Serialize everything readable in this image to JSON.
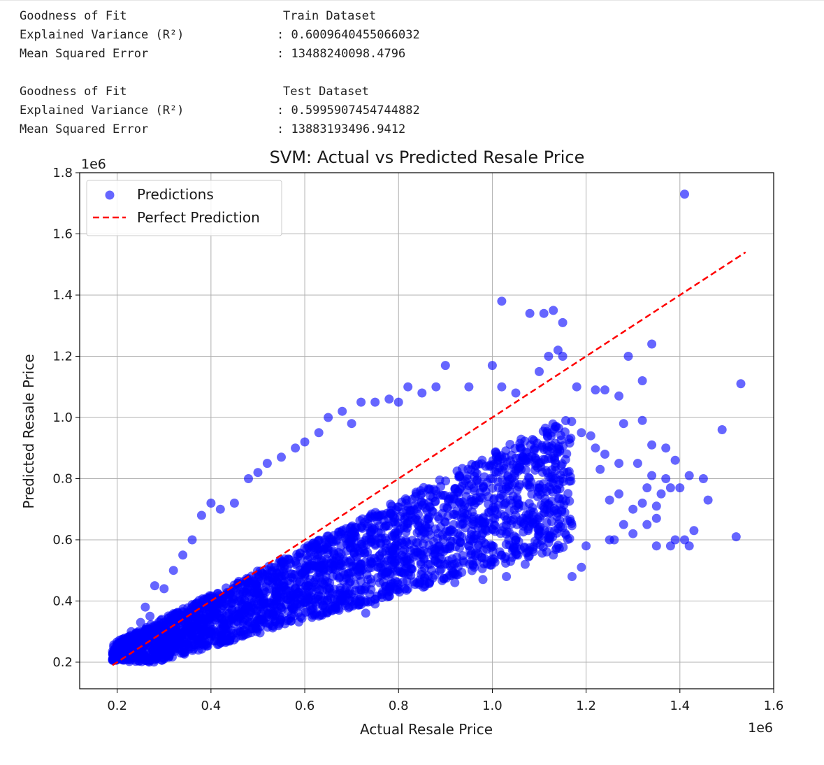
{
  "stats": {
    "train": {
      "header_label": "Goodness of Fit",
      "dataset": "Train Dataset",
      "r2_label": "Explained Variance (R²)",
      "r2_value": ": 0.6009640455066032",
      "mse_label": "Mean Squared Error",
      "mse_value": ": 13488240098.4796"
    },
    "test": {
      "header_label": "Goodness of Fit",
      "dataset": "Test Dataset",
      "r2_label": "Explained Variance (R²)",
      "r2_value": ": 0.5995907454744882",
      "mse_label": "Mean Squared Error",
      "mse_value": ": 13883193496.9412"
    }
  },
  "chart_data": {
    "type": "scatter",
    "title": "SVM: Actual vs Predicted Resale Price",
    "xlabel": "Actual Resale Price",
    "ylabel": "Predicted Resale Price",
    "x_offset_text": "1e6",
    "y_offset_text": "1e6",
    "xlim": [
      0.12,
      1.6
    ],
    "ylim": [
      0.113,
      1.8
    ],
    "x_ticks": [
      0.2,
      0.4,
      0.6,
      0.8,
      1.0,
      1.2,
      1.4,
      1.6
    ],
    "x_tick_labels": [
      "0.2",
      "0.4",
      "0.6",
      "0.8",
      "1.0",
      "1.2",
      "1.4",
      "1.6"
    ],
    "y_ticks": [
      0.2,
      0.4,
      0.6,
      0.8,
      1.0,
      1.2,
      1.4,
      1.6,
      1.8
    ],
    "y_tick_labels": [
      "0.2",
      "0.4",
      "0.6",
      "0.8",
      "1.0",
      "1.2",
      "1.4",
      "1.6",
      "1.8"
    ],
    "grid": true,
    "legend_position": "top-left",
    "legend": [
      "Predictions",
      "Perfect Prediction"
    ],
    "series": [
      {
        "name": "Predictions",
        "kind": "scatter",
        "color": "#0000ff",
        "alpha": 0.6,
        "note": "dense cloud of points roughly between actual 0.19-1.15 and predicted 0.2-1.0; outliers listed",
        "points": [
          [
            0.19,
            0.235
          ],
          [
            0.2,
            0.21
          ],
          [
            0.21,
            0.24
          ],
          [
            0.22,
            0.26
          ],
          [
            0.23,
            0.3
          ],
          [
            0.24,
            0.28
          ],
          [
            0.25,
            0.33
          ],
          [
            0.26,
            0.38
          ],
          [
            0.27,
            0.35
          ],
          [
            0.28,
            0.45
          ],
          [
            0.3,
            0.44
          ],
          [
            0.32,
            0.5
          ],
          [
            0.34,
            0.55
          ],
          [
            0.36,
            0.6
          ],
          [
            0.38,
            0.68
          ],
          [
            0.4,
            0.72
          ],
          [
            0.42,
            0.7
          ],
          [
            0.45,
            0.72
          ],
          [
            0.48,
            0.8
          ],
          [
            0.5,
            0.82
          ],
          [
            0.52,
            0.85
          ],
          [
            0.55,
            0.87
          ],
          [
            0.58,
            0.9
          ],
          [
            0.6,
            0.92
          ],
          [
            0.63,
            0.95
          ],
          [
            0.65,
            1.0
          ],
          [
            0.68,
            1.02
          ],
          [
            0.7,
            0.98
          ],
          [
            0.72,
            1.05
          ],
          [
            0.75,
            1.05
          ],
          [
            0.78,
            1.06
          ],
          [
            0.8,
            1.05
          ],
          [
            0.82,
            1.1
          ],
          [
            0.85,
            1.08
          ],
          [
            0.88,
            1.1
          ],
          [
            0.9,
            1.17
          ],
          [
            0.95,
            1.1
          ],
          [
            1.0,
            1.17
          ],
          [
            1.02,
            1.1
          ],
          [
            1.05,
            1.08
          ],
          [
            1.1,
            1.15
          ],
          [
            1.12,
            1.2
          ],
          [
            1.15,
            1.2
          ],
          [
            1.18,
            1.1
          ],
          [
            0.44,
            0.27
          ],
          [
            0.48,
            0.38
          ],
          [
            0.55,
            0.45
          ],
          [
            0.6,
            0.48
          ],
          [
            0.65,
            0.5
          ],
          [
            0.72,
            0.52
          ],
          [
            0.78,
            0.55
          ],
          [
            0.85,
            0.55
          ],
          [
            0.9,
            0.57
          ],
          [
            0.95,
            0.58
          ],
          [
            1.0,
            0.58
          ],
          [
            1.05,
            0.6
          ],
          [
            1.1,
            0.62
          ],
          [
            1.15,
            0.64
          ],
          [
            0.73,
            0.36
          ],
          [
            0.75,
            0.39
          ],
          [
            0.82,
            0.44
          ],
          [
            0.92,
            0.46
          ],
          [
            0.98,
            0.47
          ],
          [
            1.03,
            0.48
          ],
          [
            1.07,
            0.52
          ],
          [
            1.13,
            0.55
          ],
          [
            1.2,
            0.58
          ],
          [
            1.02,
            1.38
          ],
          [
            1.08,
            1.34
          ],
          [
            1.11,
            1.34
          ],
          [
            1.13,
            1.35
          ],
          [
            1.15,
            1.31
          ],
          [
            1.14,
            1.22
          ],
          [
            1.34,
            1.24
          ],
          [
            1.29,
            1.2
          ],
          [
            1.32,
            1.12
          ],
          [
            1.22,
            1.09
          ],
          [
            1.24,
            1.09
          ],
          [
            1.27,
            1.07
          ],
          [
            1.53,
            1.11
          ],
          [
            1.41,
            1.73
          ],
          [
            1.28,
            0.98
          ],
          [
            1.32,
            0.99
          ],
          [
            1.49,
            0.96
          ],
          [
            1.34,
            0.91
          ],
          [
            1.37,
            0.9
          ],
          [
            1.42,
            0.81
          ],
          [
            1.45,
            0.8
          ],
          [
            1.46,
            0.73
          ],
          [
            1.52,
            0.61
          ],
          [
            1.42,
            0.58
          ],
          [
            1.38,
            0.58
          ],
          [
            1.35,
            0.58
          ],
          [
            1.26,
            0.6
          ],
          [
            1.3,
            0.62
          ],
          [
            1.33,
            0.65
          ],
          [
            1.35,
            0.71
          ],
          [
            1.38,
            0.77
          ],
          [
            1.4,
            0.77
          ],
          [
            1.43,
            0.63
          ],
          [
            1.41,
            0.6
          ],
          [
            1.39,
            0.6
          ],
          [
            1.3,
            0.7
          ],
          [
            1.27,
            0.75
          ],
          [
            1.25,
            0.73
          ],
          [
            1.23,
            0.83
          ],
          [
            1.22,
            0.9
          ],
          [
            1.21,
            0.94
          ],
          [
            1.19,
            0.95
          ],
          [
            1.24,
            0.88
          ],
          [
            1.27,
            0.85
          ],
          [
            1.31,
            0.85
          ],
          [
            1.34,
            0.81
          ],
          [
            1.37,
            0.8
          ],
          [
            1.17,
            0.48
          ],
          [
            1.19,
            0.51
          ],
          [
            1.25,
            0.6
          ],
          [
            1.28,
            0.65
          ],
          [
            1.32,
            0.72
          ],
          [
            1.36,
            0.75
          ],
          [
            1.39,
            0.86
          ],
          [
            1.33,
            0.77
          ],
          [
            1.35,
            0.67
          ]
        ]
      },
      {
        "name": "Perfect Prediction",
        "kind": "line",
        "style": "dashed",
        "color": "#ff0000",
        "x": [
          0.19,
          1.54
        ],
        "y": [
          0.19,
          1.54
        ]
      }
    ]
  }
}
